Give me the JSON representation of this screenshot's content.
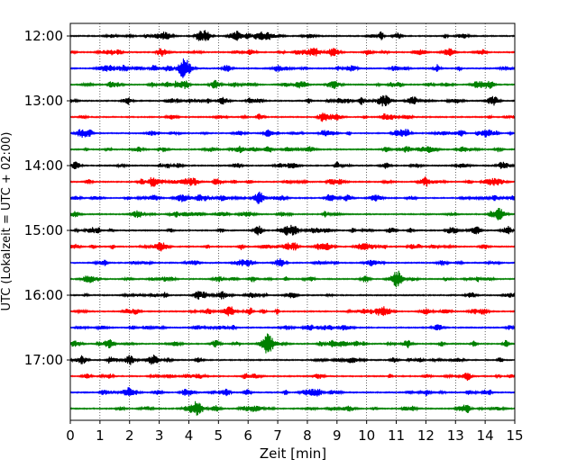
{
  "chart_data": {
    "type": "line",
    "title": "",
    "xlabel": "Zeit  [min]",
    "ylabel": "UTC (Lokalzeit = UTC + 02:00)",
    "xlim": [
      0,
      15
    ],
    "x_ticks": [
      0,
      1,
      2,
      3,
      4,
      5,
      6,
      7,
      8,
      9,
      10,
      11,
      12,
      13,
      14,
      15
    ],
    "x_tick_labels": [
      "0",
      "1",
      "2",
      "3",
      "4",
      "5",
      "6",
      "7",
      "8",
      "9",
      "10",
      "11",
      "12",
      "13",
      "14",
      "15"
    ],
    "y_tick_labels": [
      "12:00",
      "13:00",
      "14:00",
      "15:00",
      "16:00",
      "17:00"
    ],
    "grid": "vertical dotted",
    "trace_interval_minutes": 15,
    "color_cycle": [
      "#000000",
      "#ff0000",
      "#0000ff",
      "#008000"
    ],
    "traces": [
      {
        "start": "12:00"
      },
      {
        "start": "12:15"
      },
      {
        "start": "12:30"
      },
      {
        "start": "12:45"
      },
      {
        "start": "13:00"
      },
      {
        "start": "13:15"
      },
      {
        "start": "13:30"
      },
      {
        "start": "13:45"
      },
      {
        "start": "14:00"
      },
      {
        "start": "14:15"
      },
      {
        "start": "14:30"
      },
      {
        "start": "14:45"
      },
      {
        "start": "15:00"
      },
      {
        "start": "15:15"
      },
      {
        "start": "15:30"
      },
      {
        "start": "15:45"
      },
      {
        "start": "16:00"
      },
      {
        "start": "16:15"
      },
      {
        "start": "16:30"
      },
      {
        "start": "16:45"
      },
      {
        "start": "17:00"
      },
      {
        "start": "17:15"
      },
      {
        "start": "17:30"
      },
      {
        "start": "17:45"
      }
    ],
    "notable_events": [
      {
        "trace_start": "12:30",
        "minute": 3.85
      },
      {
        "trace_start": "16:45",
        "minute": 6.65
      }
    ]
  }
}
